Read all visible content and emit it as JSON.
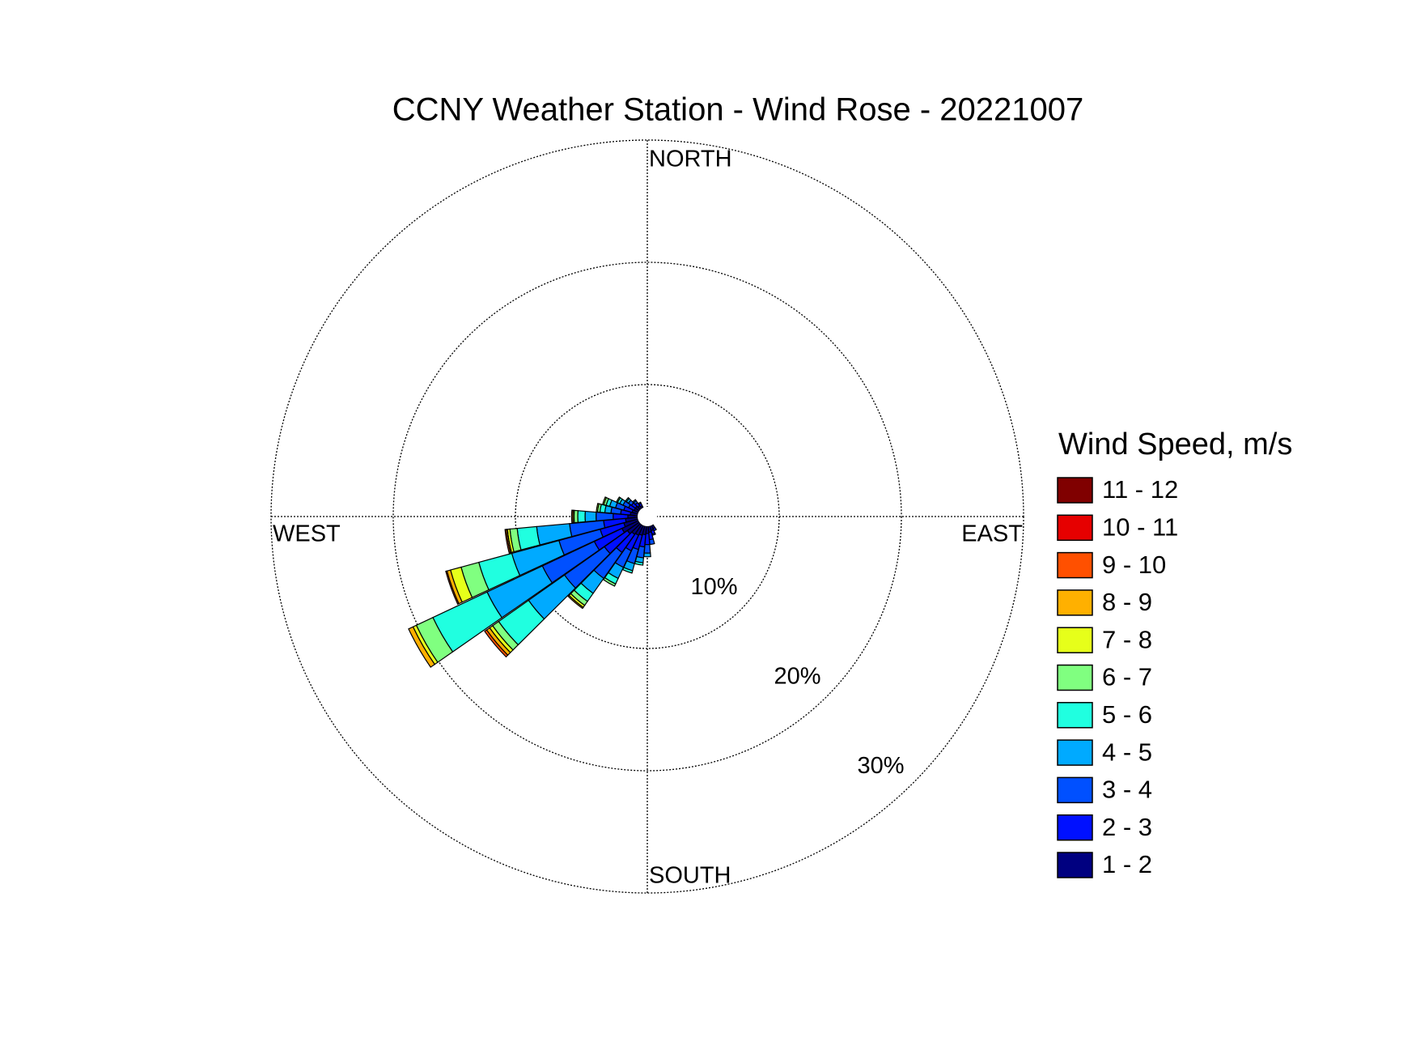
{
  "chart_data": {
    "type": "windrose",
    "title": "CCNY Weather Station - Wind Rose - 20221007",
    "legend_title": "Wind Speed, m/s",
    "compass": [
      "NORTH",
      "EAST",
      "SOUTH",
      "WEST"
    ],
    "x": [
      150,
      160,
      170,
      180,
      190,
      200,
      210,
      220,
      230,
      240,
      250,
      260,
      270,
      280,
      290,
      300,
      310,
      320,
      330
    ],
    "ylim": [
      0,
      30
    ],
    "yticks": [
      {
        "value": 10,
        "label": "10%"
      },
      {
        "value": 20,
        "label": "20%"
      },
      {
        "value": 30,
        "label": "30%"
      }
    ],
    "series": [
      {
        "name": "1 - 2",
        "color": "#000080",
        "values": [
          0.3,
          0.4,
          0.5,
          0.6,
          0.7,
          0.8,
          0.9,
          1.0,
          1.2,
          1.5,
          1.2,
          1.0,
          0.8,
          0.6,
          0.5,
          0.4,
          0.4,
          0.3,
          0.2
        ]
      },
      {
        "name": "2 - 3",
        "color": "#0010ff",
        "values": [
          0.2,
          0.3,
          0.6,
          0.9,
          1.0,
          1.2,
          1.4,
          1.8,
          2.3,
          2.5,
          2.0,
          1.8,
          1.2,
          0.8,
          0.7,
          0.5,
          0.4,
          0.3,
          0.2
        ]
      },
      {
        "name": "3 - 4",
        "color": "#0050ff",
        "values": [
          0,
          0.1,
          0.4,
          0.7,
          0.9,
          1.2,
          1.5,
          2.6,
          4.0,
          4.7,
          3.5,
          2.8,
          1.4,
          0.8,
          0.7,
          0.5,
          0.3,
          0.2,
          0.1
        ]
      },
      {
        "name": "4 - 5",
        "color": "#00aaff",
        "values": [
          0,
          0,
          0,
          0.3,
          0.4,
          0.6,
          1.0,
          1.5,
          3.6,
          5.0,
          4.0,
          2.7,
          0.9,
          0.5,
          0.5,
          0.3,
          0.2,
          0.1,
          0
        ]
      },
      {
        "name": "5 - 6",
        "color": "#20ffe0",
        "values": [
          0,
          0,
          0,
          0,
          0.2,
          0.2,
          0.5,
          0.8,
          3.0,
          4.9,
          2.8,
          1.6,
          0.6,
          0.4,
          0.3,
          0.2,
          0.1,
          0,
          0
        ]
      },
      {
        "name": "6 - 7",
        "color": "#80ff80",
        "values": [
          0,
          0,
          0,
          0,
          0,
          0,
          0.2,
          0.4,
          0.6,
          1.5,
          1.5,
          0.6,
          0.3,
          0.2,
          0.2,
          0.1,
          0,
          0,
          0
        ]
      },
      {
        "name": "7 - 8",
        "color": "#e6ff1a",
        "values": [
          0,
          0,
          0,
          0,
          0,
          0,
          0,
          0.2,
          0.3,
          0.3,
          0.9,
          0.2,
          0.1,
          0.1,
          0.1,
          0,
          0,
          0,
          0
        ]
      },
      {
        "name": "8 - 9",
        "color": "#ffb000",
        "values": [
          0,
          0,
          0,
          0,
          0,
          0,
          0,
          0.1,
          0.3,
          0.4,
          0.3,
          0.1,
          0,
          0,
          0,
          0,
          0,
          0,
          0
        ]
      },
      {
        "name": "9 - 10",
        "color": "#ff5000",
        "values": [
          0,
          0,
          0,
          0,
          0,
          0,
          0,
          0,
          0.2,
          0,
          0.1,
          0.1,
          0.1,
          0,
          0,
          0,
          0,
          0,
          0
        ]
      },
      {
        "name": "10 - 11",
        "color": "#e60000",
        "values": [
          0,
          0,
          0,
          0,
          0,
          0,
          0,
          0,
          0,
          0,
          0,
          0,
          0,
          0,
          0,
          0,
          0,
          0,
          0
        ]
      },
      {
        "name": "11 - 12",
        "color": "#800000",
        "values": [
          0,
          0,
          0,
          0,
          0,
          0,
          0,
          0,
          0,
          0,
          0,
          0,
          0,
          0,
          0,
          0,
          0,
          0,
          0
        ]
      }
    ]
  }
}
